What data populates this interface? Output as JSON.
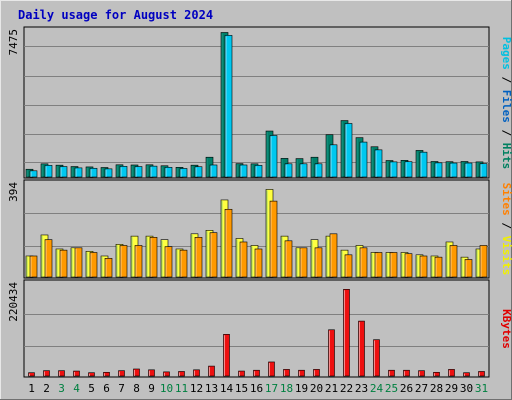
{
  "chart_data": [
    {
      "type": "bar",
      "title": "Daily usage for August 2024",
      "categories": [
        "1",
        "2",
        "3",
        "4",
        "5",
        "6",
        "7",
        "8",
        "9",
        "10",
        "11",
        "12",
        "13",
        "14",
        "15",
        "16",
        "17",
        "18",
        "19",
        "20",
        "21",
        "22",
        "23",
        "24",
        "25",
        "26",
        "27",
        "28",
        "29",
        "30",
        "31"
      ],
      "weekend_days": [
        "3",
        "4",
        "10",
        "11",
        "17",
        "18",
        "24",
        "25",
        "31"
      ],
      "y_max_label": "7475",
      "ylim": [
        0,
        7475
      ],
      "legend": [
        "Pages",
        "Files",
        "Hits"
      ],
      "legend_colors": [
        "#00c0e0",
        "#0060c0",
        "#008060"
      ],
      "series": [
        {
          "name": "Hits",
          "color": "#00806a",
          "values": [
            400,
            680,
            610,
            540,
            520,
            490,
            630,
            620,
            630,
            580,
            500,
            610,
            1020,
            7450,
            690,
            680,
            2370,
            960,
            950,
            1020,
            2180,
            2910,
            2030,
            1560,
            850,
            860,
            1370,
            800,
            790,
            800,
            780
          ]
        },
        {
          "name": "Files",
          "color": "#00c8f0",
          "values": [
            320,
            600,
            540,
            470,
            450,
            420,
            550,
            540,
            560,
            500,
            440,
            530,
            620,
            7300,
            620,
            600,
            2140,
            680,
            680,
            680,
            1660,
            2760,
            1800,
            1400,
            780,
            790,
            1280,
            730,
            720,
            720,
            690
          ]
        }
      ]
    },
    {
      "type": "bar",
      "y_max_label": "394",
      "ylim": [
        0,
        394
      ],
      "legend": [
        "Sites",
        "Visits"
      ],
      "legend_colors": [
        "#ff8000",
        "#f0f000"
      ],
      "series": [
        {
          "name": "Visits",
          "color": "#ffff40",
          "values": [
            90,
            180,
            120,
            125,
            110,
            90,
            140,
            175,
            175,
            160,
            120,
            185,
            200,
            330,
            165,
            135,
            375,
            175,
            125,
            160,
            175,
            115,
            135,
            105,
            105,
            105,
            95,
            90,
            150,
            85,
            120
          ]
        },
        {
          "name": "Sites",
          "color": "#ff9900",
          "values": [
            90,
            160,
            115,
            125,
            105,
            80,
            135,
            135,
            170,
            130,
            115,
            170,
            190,
            290,
            150,
            120,
            325,
            155,
            125,
            125,
            185,
            95,
            125,
            105,
            105,
            100,
            90,
            85,
            135,
            75,
            135
          ]
        }
      ]
    },
    {
      "type": "bar",
      "y_max_label": "220434",
      "ylim": [
        0,
        220434
      ],
      "legend": [
        "KBytes"
      ],
      "legend_colors": [
        "#e00000"
      ],
      "series": [
        {
          "name": "KBytes",
          "color": "#ee1010",
          "values": [
            8000,
            13000,
            13000,
            12000,
            8000,
            9000,
            13000,
            17000,
            15000,
            10000,
            11000,
            15000,
            24000,
            101000,
            12000,
            14000,
            34000,
            16000,
            14000,
            16000,
            112000,
            210000,
            133000,
            88000,
            14000,
            14000,
            13000,
            9000,
            16000,
            8000,
            11000
          ]
        }
      ]
    }
  ]
}
